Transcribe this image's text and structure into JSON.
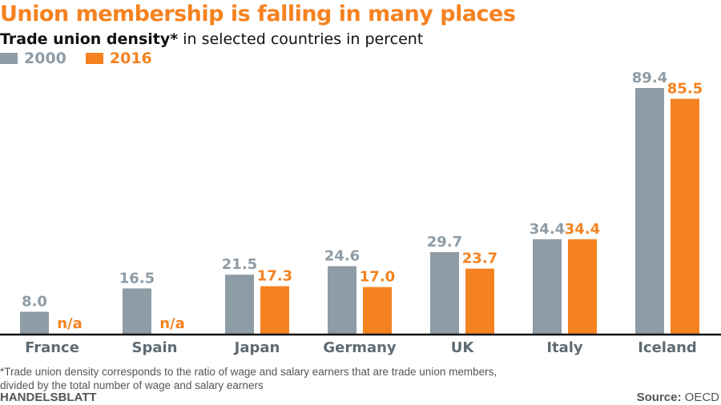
{
  "chart_data": {
    "type": "bar",
    "title": "Union membership is falling in many places",
    "subtitle_bold": "Trade union density*",
    "subtitle_rest": " in selected countries in percent",
    "categories": [
      "France",
      "Spain",
      "Japan",
      "Germany",
      "UK",
      "Italy",
      "Iceland"
    ],
    "series": [
      {
        "name": "2000",
        "color": "#8e9ca6",
        "values": [
          8.0,
          16.5,
          21.5,
          24.6,
          29.7,
          34.4,
          89.4
        ],
        "labels": [
          "8.0",
          "16.5",
          "21.5",
          "24.6",
          "29.7",
          "34.4",
          "89.4"
        ]
      },
      {
        "name": "2016",
        "color": "#f58220",
        "values": [
          null,
          null,
          17.3,
          17.0,
          23.7,
          34.4,
          85.5
        ],
        "labels": [
          "n/a",
          "n/a",
          "17.3",
          "17.0",
          "23.7",
          "34.4",
          "85.5"
        ]
      }
    ],
    "ylim": [
      0,
      90
    ],
    "xlabel": "",
    "ylabel": "",
    "grid": false,
    "legend_placement": "top-left"
  },
  "footnote_line1": "*Trade union density corresponds to the ratio of wage and salary earners that are trade union members,",
  "footnote_line2": "divided by the total number of wage and salary earners",
  "brand": "HANDELSBLATT",
  "source_label": "Source:",
  "source_value": " OECD"
}
